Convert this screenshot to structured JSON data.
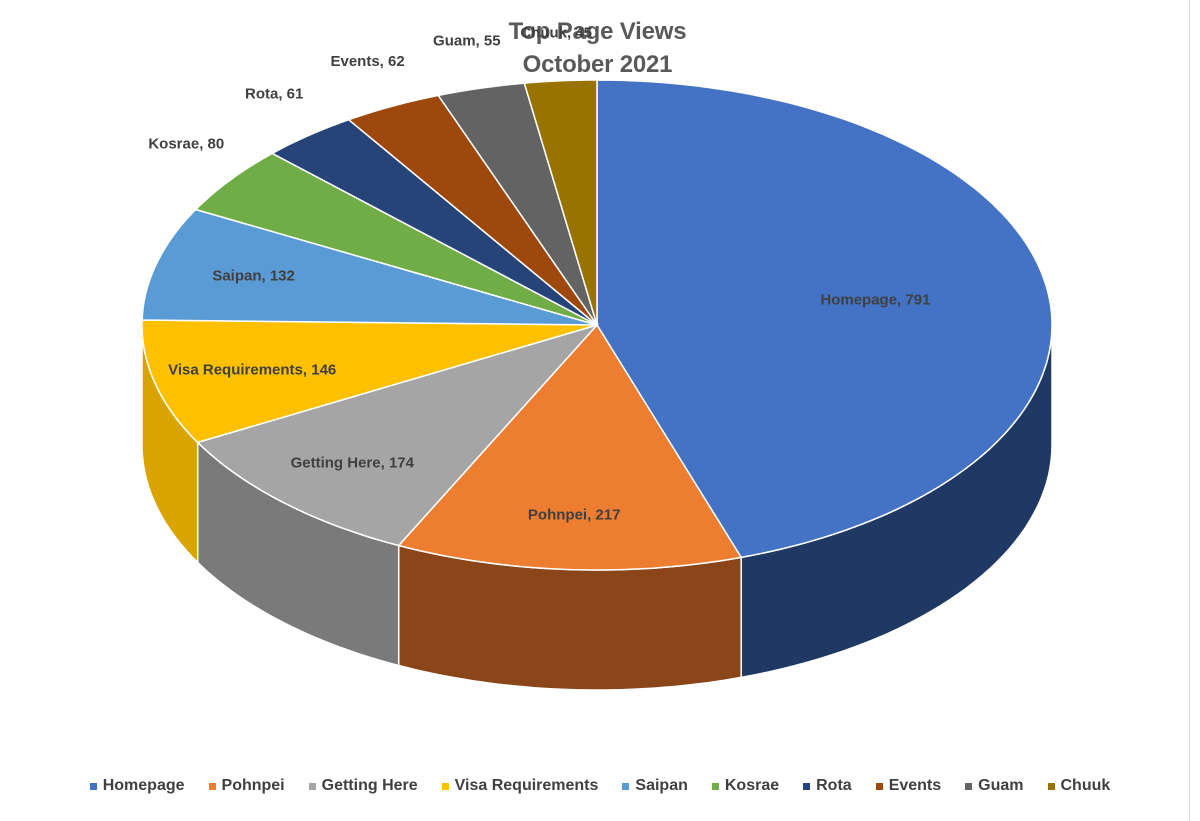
{
  "chart_data": {
    "type": "pie",
    "title": "Top Page Views",
    "subtitle": "October 2021",
    "legend_position": "bottom",
    "three_d": true,
    "slices": [
      {
        "label": "Homepage",
        "value": 791,
        "data_label": "Homepage, 791",
        "color": "#4472C4",
        "side_color": "#1F3864"
      },
      {
        "label": "Pohnpei",
        "value": 217,
        "data_label": "Pohnpei, 217",
        "color": "#ED7D31",
        "side_color": "#8A4518"
      },
      {
        "label": "Getting Here",
        "value": 174,
        "data_label": "Getting Here, 174",
        "color": "#A5A5A5",
        "side_color": "#7A7A7A"
      },
      {
        "label": "Visa Requirements",
        "value": 146,
        "data_label": "Visa Requirements, 146",
        "color": "#FFC000",
        "side_color": "#D9A400"
      },
      {
        "label": "Saipan",
        "value": 132,
        "data_label": "Saipan, 132",
        "color": "#5B9BD5",
        "side_color": "#3A6E9E"
      },
      {
        "label": "Kosrae",
        "value": 80,
        "data_label": "Kosrae, 80",
        "color": "#70AD47",
        "side_color": "#4E7A31"
      },
      {
        "label": "Rota",
        "value": 61,
        "data_label": "Rota, 61",
        "color": "#264478",
        "side_color": "#17294A"
      },
      {
        "label": "Events",
        "value": 62,
        "data_label": "Events, 62",
        "color": "#9E480E",
        "side_color": "#6B300A"
      },
      {
        "label": "Guam",
        "value": 55,
        "data_label": "Guam, 55",
        "color": "#636363",
        "side_color": "#404040"
      },
      {
        "label": "Chuuk",
        "value": 45,
        "data_label": "Chuuk, 45",
        "color": "#997300",
        "side_color": "#6B5000"
      }
    ]
  }
}
